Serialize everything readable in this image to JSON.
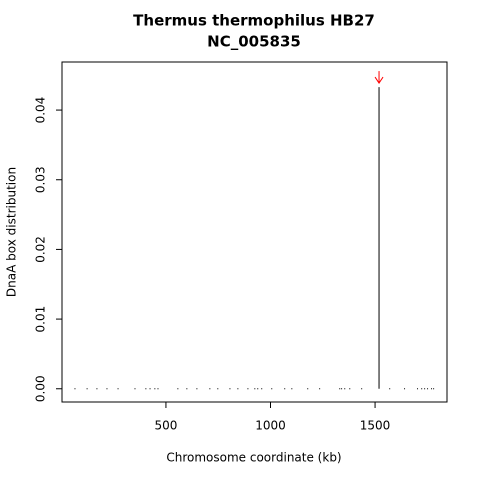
{
  "chart_data": {
    "type": "spike",
    "title": "Thermus thermophilus HB27",
    "subtitle": "NC_005835",
    "x_label": "Chromosome coordinate (kb)",
    "y_label": "DnaA box distribution",
    "x": [
      65,
      123,
      170,
      218,
      271,
      352,
      404,
      424,
      447,
      462,
      557,
      600,
      648,
      710,
      748,
      806,
      844,
      892,
      925,
      939,
      958,
      1006,
      1068,
      1102,
      1178,
      1235,
      1331,
      1340,
      1355,
      1379,
      1436,
      1519,
      1570,
      1641,
      1703,
      1723,
      1737,
      1751,
      1770,
      1780
    ],
    "values": [
      0,
      0,
      0,
      0,
      0,
      0,
      0,
      0,
      0,
      0,
      0,
      0,
      0,
      0,
      0,
      0,
      0,
      0,
      0,
      0,
      0,
      0,
      0,
      0,
      0,
      0,
      0,
      0,
      0,
      0,
      0,
      0.0433,
      0,
      0,
      0,
      0,
      0,
      0,
      0,
      0
    ],
    "color": "#000000",
    "arrow_color": "#ff0000",
    "xlim": [
      3,
      1844
    ],
    "xticks": [
      500,
      1000,
      1500
    ],
    "ylim": [
      -0.0019,
      0.0469
    ],
    "yticks": [
      {
        "value": 0,
        "label": "0.00"
      },
      {
        "value": 0.01,
        "label": "0.01"
      },
      {
        "value": 0.02,
        "label": "0.02"
      },
      {
        "value": 0.03,
        "label": "0.03"
      },
      {
        "value": 0.04,
        "label": "0.04"
      }
    ]
  }
}
